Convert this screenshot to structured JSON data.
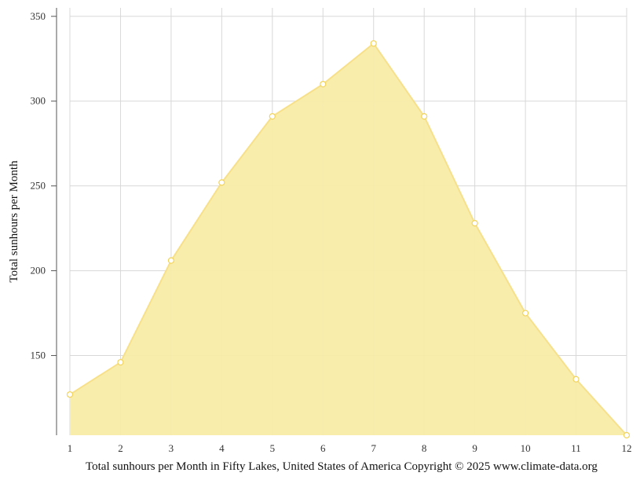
{
  "chart_data": {
    "type": "area",
    "x": [
      1,
      2,
      3,
      4,
      5,
      6,
      7,
      8,
      9,
      10,
      11,
      12
    ],
    "series": [
      {
        "values": [
          127,
          146,
          206,
          252,
          291,
          310,
          334,
          291,
          228,
          175,
          136,
          103
        ]
      }
    ],
    "ylabel": "Total sunhours per Month",
    "xlabel": "",
    "caption": "Total sunhours per Month in Fifty Lakes, United States of America Copyright © 2025 www.climate-data.org",
    "xticks": [
      "1",
      "2",
      "3",
      "4",
      "5",
      "6",
      "7",
      "8",
      "9",
      "10",
      "11",
      "12"
    ],
    "yticks": [
      "150",
      "200",
      "250",
      "300",
      "350"
    ],
    "ylim": [
      103,
      355
    ],
    "xlim": [
      1,
      12
    ],
    "grid": true,
    "colors": {
      "fill": "#f9eca8",
      "line": "#f7e08a",
      "marker_stroke": "#f2d35a",
      "marker_fill": "#ffffff",
      "grid": "#d8d8d8",
      "axis": "#555555"
    }
  }
}
